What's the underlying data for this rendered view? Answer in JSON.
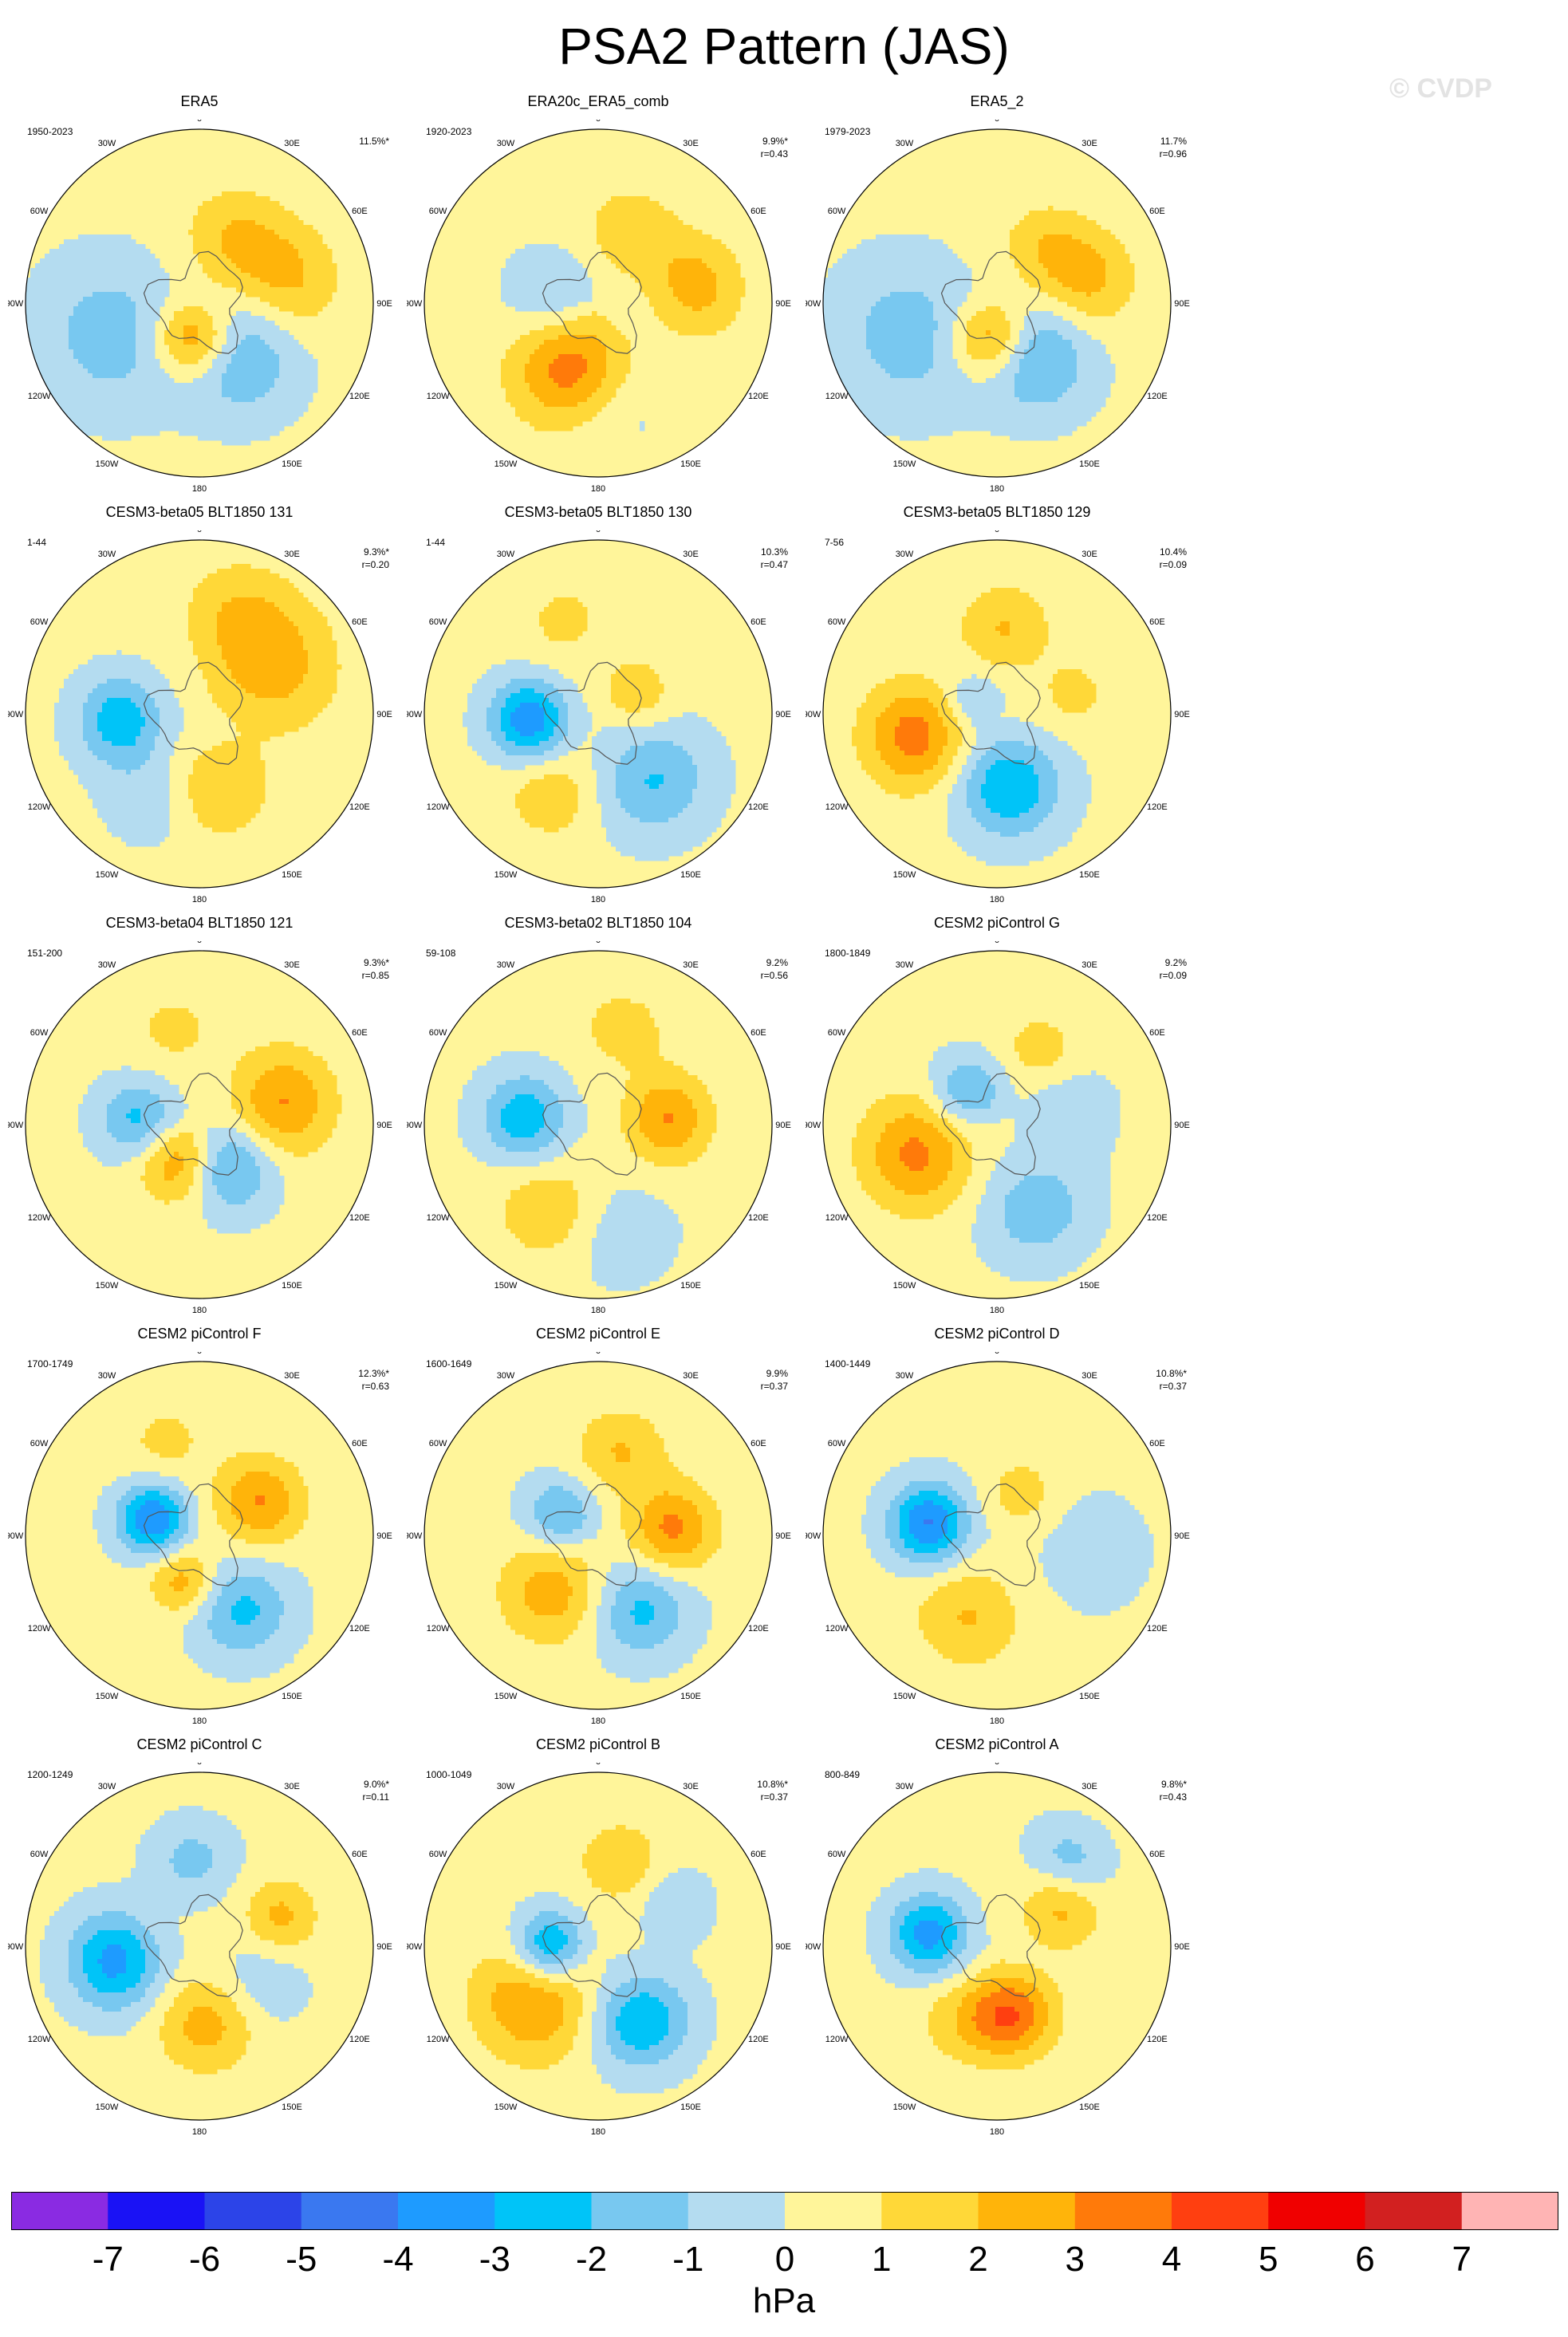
{
  "page": {
    "title": "PSA2 Pattern (JAS)",
    "watermark": "© CVDP"
  },
  "lon_labels": [
    "0",
    "30E",
    "60E",
    "90E",
    "120E",
    "150E",
    "180",
    "150W",
    "120W",
    "90W",
    "60W",
    "30W"
  ],
  "colorbar": {
    "colors": [
      "#8a2be2",
      "#1a12f5",
      "#2c44e8",
      "#3a78f0",
      "#1e9bff",
      "#00c4f8",
      "#78c8f0",
      "#b4dcf0",
      "#fff59a",
      "#ffd838",
      "#ffb40a",
      "#ff7a0a",
      "#ff3f10",
      "#f00000",
      "#d22020",
      "#ffb4b4"
    ],
    "ticks": [
      "-7",
      "-6",
      "-5",
      "-4",
      "-3",
      "-2",
      "-1",
      "0",
      "1",
      "2",
      "3",
      "4",
      "5",
      "6",
      "7"
    ],
    "units": "hPa"
  },
  "chart_data": {
    "type": "heatmap",
    "projection": "south-polar stereographic",
    "variable": "PSA2 sea level pressure pattern",
    "units": "hPa",
    "contour_levels": [
      -7,
      -6,
      -5,
      -4,
      -3,
      -2,
      -1,
      0,
      1,
      2,
      3,
      4,
      5,
      6,
      7
    ],
    "panels": [
      {
        "title": "ERA5",
        "period": "1950-2023",
        "pct": "11.5%*",
        "r": "",
        "blobs": [
          {
            "lon": 30,
            "lat": -60,
            "amp": 1.8,
            "sig": 14
          },
          {
            "lon": 75,
            "lat": -52,
            "amp": 1.8,
            "sig": 14
          },
          {
            "lon": -110,
            "lat": -52,
            "amp": -1.8,
            "sig": 20
          },
          {
            "lon": -170,
            "lat": -75,
            "amp": 3.2,
            "sig": 11
          },
          {
            "lon": 145,
            "lat": -62,
            "amp": -2.2,
            "sig": 16
          }
        ]
      },
      {
        "title": "ERA20c_ERA5_comb",
        "period": "1920-2023",
        "pct": "9.9%*",
        "r": "r=0.43",
        "blobs": [
          {
            "lon": 25,
            "lat": -58,
            "amp": 1.6,
            "sig": 12
          },
          {
            "lon": 80,
            "lat": -50,
            "amp": 2.2,
            "sig": 13
          },
          {
            "lon": -80,
            "lat": -70,
            "amp": -1.3,
            "sig": 12
          },
          {
            "lon": -160,
            "lat": -60,
            "amp": 3.6,
            "sig": 16
          },
          {
            "lon": 175,
            "lat": -50,
            "amp": -1.2,
            "sig": 14
          }
        ]
      },
      {
        "title": "ERA5_2",
        "period": "1979-2023",
        "pct": "11.7%",
        "r": "r=0.96",
        "blobs": [
          {
            "lon": 40,
            "lat": -60,
            "amp": 1.4,
            "sig": 12
          },
          {
            "lon": 75,
            "lat": -52,
            "amp": 2.0,
            "sig": 13
          },
          {
            "lon": -110,
            "lat": -52,
            "amp": -1.8,
            "sig": 20
          },
          {
            "lon": -170,
            "lat": -75,
            "amp": 3.0,
            "sig": 11
          },
          {
            "lon": 145,
            "lat": -62,
            "amp": -2.5,
            "sig": 15
          }
        ]
      },
      {
        "title": "CESM3-beta05 BLT1850 131",
        "period": "1-44",
        "pct": "9.3%*",
        "r": "r=0.20",
        "blobs": [
          {
            "lon": 55,
            "lat": -55,
            "amp": 2.3,
            "sig": 18
          },
          {
            "lon": -95,
            "lat": -58,
            "amp": -3.0,
            "sig": 12
          },
          {
            "lon": -150,
            "lat": -50,
            "amp": -1.0,
            "sig": 12
          },
          {
            "lon": 165,
            "lat": -58,
            "amp": 1.8,
            "sig": 13
          },
          {
            "lon": 20,
            "lat": -45,
            "amp": 1.2,
            "sig": 14
          }
        ]
      },
      {
        "title": "CESM3-beta05 BLT1850 130",
        "period": "1-44",
        "pct": "10.3%",
        "r": "r=0.47",
        "blobs": [
          {
            "lon": -95,
            "lat": -62,
            "amp": -4.0,
            "sig": 11
          },
          {
            "lon": 140,
            "lat": -55,
            "amp": -2.3,
            "sig": 15
          },
          {
            "lon": -150,
            "lat": -52,
            "amp": 1.5,
            "sig": 12
          },
          {
            "lon": 60,
            "lat": -72,
            "amp": 1.4,
            "sig": 10
          },
          {
            "lon": -20,
            "lat": -50,
            "amp": 1.0,
            "sig": 12
          }
        ]
      },
      {
        "title": "CESM3-beta05 BLT1850 129",
        "period": "7-56",
        "pct": "10.4%",
        "r": "r=0.09",
        "blobs": [
          {
            "lon": 5,
            "lat": -55,
            "amp": 1.8,
            "sig": 12
          },
          {
            "lon": -105,
            "lat": -55,
            "amp": 3.2,
            "sig": 14
          },
          {
            "lon": 170,
            "lat": -60,
            "amp": -3.2,
            "sig": 14
          },
          {
            "lon": -60,
            "lat": -80,
            "amp": -1.4,
            "sig": 8
          },
          {
            "lon": 75,
            "lat": -58,
            "amp": 1.1,
            "sig": 10
          }
        ]
      },
      {
        "title": "CESM3-beta04 BLT1850 121",
        "period": "151-200",
        "pct": "9.3%*",
        "r": "r=0.85",
        "blobs": [
          {
            "lon": -85,
            "lat": -65,
            "amp": -2.5,
            "sig": 11
          },
          {
            "lon": 75,
            "lat": -55,
            "amp": 2.8,
            "sig": 14
          },
          {
            "lon": -150,
            "lat": -72,
            "amp": 2.6,
            "sig": 11
          },
          {
            "lon": 145,
            "lat": -68,
            "amp": -2.6,
            "sig": 12
          },
          {
            "lon": -15,
            "lat": -50,
            "amp": 1.0,
            "sig": 12
          }
        ]
      },
      {
        "title": "CESM3-beta02 BLT1850 104",
        "period": "59-108",
        "pct": "9.2%",
        "r": "r=0.56",
        "blobs": [
          {
            "lon": -85,
            "lat": -60,
            "amp": -3.0,
            "sig": 12
          },
          {
            "lon": 85,
            "lat": -62,
            "amp": 2.8,
            "sig": 12
          },
          {
            "lon": -150,
            "lat": -50,
            "amp": 1.6,
            "sig": 14
          },
          {
            "lon": 170,
            "lat": -45,
            "amp": -1.0,
            "sig": 14
          },
          {
            "lon": 15,
            "lat": -50,
            "amp": 1.2,
            "sig": 12
          }
        ]
      },
      {
        "title": "CESM2 piControl G",
        "period": "1800-1849",
        "pct": "9.2%",
        "r": "r=0.09",
        "blobs": [
          {
            "lon": -110,
            "lat": -55,
            "amp": 3.0,
            "sig": 15
          },
          {
            "lon": -40,
            "lat": -72,
            "amp": -2.3,
            "sig": 10
          },
          {
            "lon": 155,
            "lat": -52,
            "amp": -2.0,
            "sig": 14
          },
          {
            "lon": 30,
            "lat": -55,
            "amp": 1.3,
            "sig": 10
          },
          {
            "lon": 80,
            "lat": -60,
            "amp": -1.1,
            "sig": 12
          }
        ]
      },
      {
        "title": "CESM2 piControl F",
        "period": "1700-1749",
        "pct": "12.3%*",
        "r": "r=0.63",
        "blobs": [
          {
            "lon": -70,
            "lat": -70,
            "amp": -4.2,
            "sig": 10
          },
          {
            "lon": 60,
            "lat": -62,
            "amp": 2.8,
            "sig": 12
          },
          {
            "lon": -160,
            "lat": -70,
            "amp": 2.2,
            "sig": 9
          },
          {
            "lon": 150,
            "lat": -55,
            "amp": -2.5,
            "sig": 13
          },
          {
            "lon": -20,
            "lat": -50,
            "amp": 1.0,
            "sig": 12
          }
        ]
      },
      {
        "title": "CESM2 piControl E",
        "period": "1600-1649",
        "pct": "9.9%",
        "r": "r=0.37",
        "blobs": [
          {
            "lon": 15,
            "lat": -55,
            "amp": 1.8,
            "sig": 12
          },
          {
            "lon": 85,
            "lat": -60,
            "amp": 3.0,
            "sig": 12
          },
          {
            "lon": -60,
            "lat": -72,
            "amp": -2.3,
            "sig": 10
          },
          {
            "lon": -140,
            "lat": -60,
            "amp": 2.3,
            "sig": 14
          },
          {
            "lon": 150,
            "lat": -55,
            "amp": -2.5,
            "sig": 13
          }
        ]
      },
      {
        "title": "CESM2 piControl D",
        "period": "1400-1449",
        "pct": "10.8%*",
        "r": "r=0.37",
        "blobs": [
          {
            "lon": -80,
            "lat": -62,
            "amp": -4.3,
            "sig": 11
          },
          {
            "lon": -160,
            "lat": -55,
            "amp": 1.8,
            "sig": 14
          },
          {
            "lon": 30,
            "lat": -70,
            "amp": 1.2,
            "sig": 10
          },
          {
            "lon": 100,
            "lat": -50,
            "amp": -1.0,
            "sig": 14
          }
        ]
      },
      {
        "title": "CESM2 piControl C",
        "period": "1200-1249",
        "pct": "9.0%*",
        "r": "r=0.11",
        "blobs": [
          {
            "lon": -100,
            "lat": -55,
            "amp": -3.6,
            "sig": 13
          },
          {
            "lon": -5,
            "lat": -55,
            "amp": -1.6,
            "sig": 11
          },
          {
            "lon": 70,
            "lat": -55,
            "amp": 2.0,
            "sig": 10
          },
          {
            "lon": 175,
            "lat": -58,
            "amp": 2.2,
            "sig": 13
          },
          {
            "lon": 120,
            "lat": -60,
            "amp": -1.0,
            "sig": 12
          }
        ]
      },
      {
        "title": "CESM2 piControl B",
        "period": "1000-1049",
        "pct": "10.8%*",
        "r": "r=0.37",
        "blobs": [
          {
            "lon": -90,
            "lat": -70,
            "amp": -3.6,
            "sig": 10
          },
          {
            "lon": -130,
            "lat": -55,
            "amp": 2.8,
            "sig": 16
          },
          {
            "lon": 150,
            "lat": -55,
            "amp": -3.2,
            "sig": 13
          },
          {
            "lon": 15,
            "lat": -55,
            "amp": 1.5,
            "sig": 12
          },
          {
            "lon": 60,
            "lat": -55,
            "amp": -1.2,
            "sig": 10
          }
        ]
      },
      {
        "title": "CESM2 piControl A",
        "period": "800-849",
        "pct": "9.8%*",
        "r": "r=0.43",
        "blobs": [
          {
            "lon": -80,
            "lat": -62,
            "amp": -3.7,
            "sig": 11
          },
          {
            "lon": 170,
            "lat": -62,
            "amp": 3.8,
            "sig": 12
          },
          {
            "lon": 60,
            "lat": -60,
            "amp": 2.0,
            "sig": 11
          },
          {
            "lon": 40,
            "lat": -45,
            "amp": -1.8,
            "sig": 10
          },
          {
            "lon": -150,
            "lat": -55,
            "amp": 1.0,
            "sig": 12
          }
        ]
      }
    ]
  }
}
